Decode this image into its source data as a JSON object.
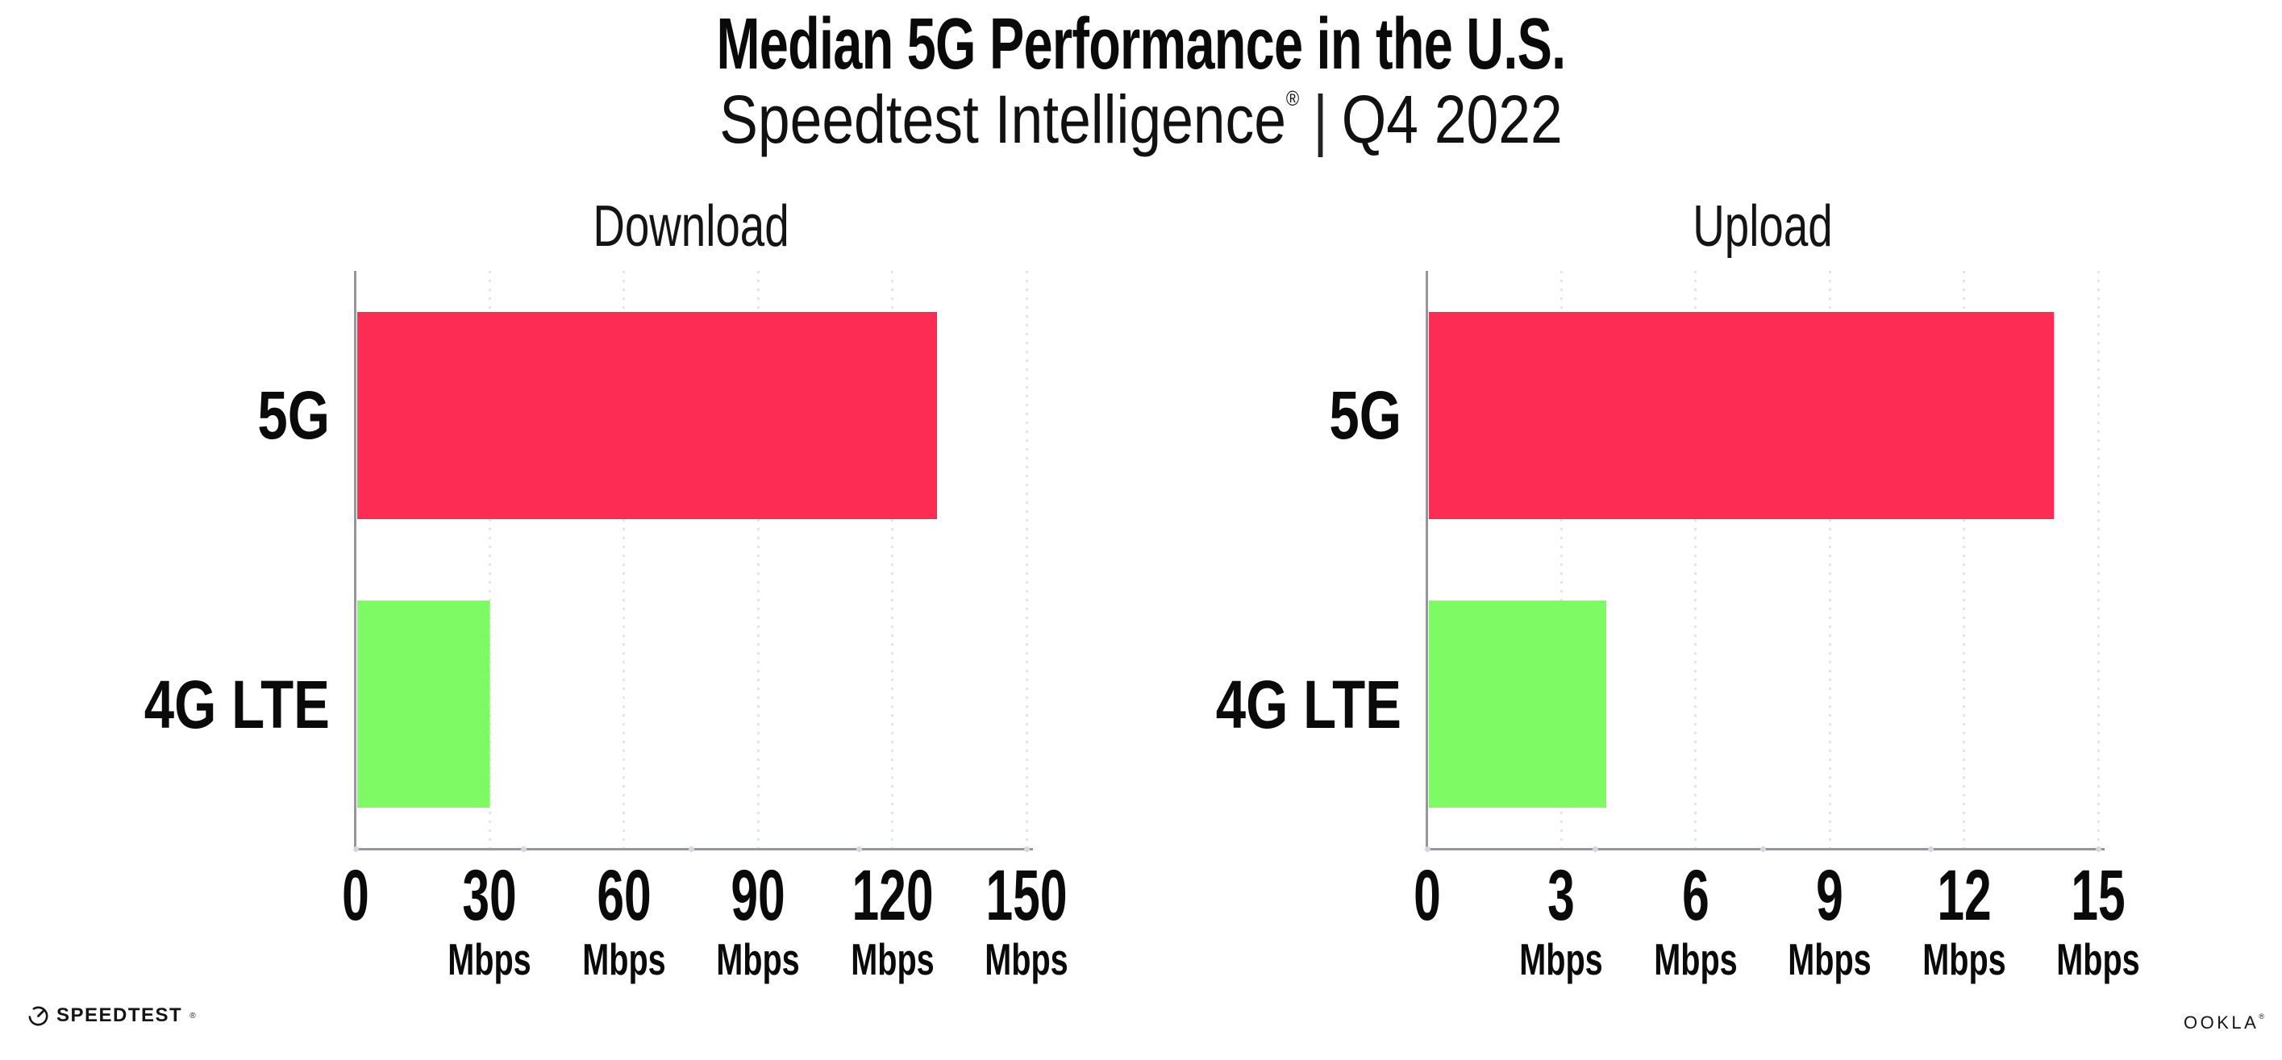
{
  "header": {
    "title": "Median 5G Performance in the U.S.",
    "subtitle_product": "Speedtest Intelligence",
    "subtitle_reg": "®",
    "subtitle_separator": "|",
    "subtitle_period": "Q4 2022"
  },
  "chart_data": [
    {
      "type": "bar",
      "orientation": "horizontal",
      "title": "Download",
      "categories": [
        "5G",
        "4G LTE"
      ],
      "values": [
        130,
        30
      ],
      "unit": "Mbps",
      "xlim": [
        0,
        150
      ],
      "xticks": [
        0,
        30,
        60,
        90,
        120,
        150
      ],
      "tick_unit_label": "Mbps",
      "bar_colors": [
        "#FC2C55",
        "#7EFA64"
      ],
      "gridlines": "dotted-vertical",
      "legend": "none"
    },
    {
      "type": "bar",
      "orientation": "horizontal",
      "title": "Upload",
      "categories": [
        "5G",
        "4G LTE"
      ],
      "values": [
        14,
        4
      ],
      "unit": "Mbps",
      "xlim": [
        0,
        15
      ],
      "xticks": [
        0,
        3,
        6,
        9,
        12,
        15
      ],
      "tick_unit_label": "Mbps",
      "bar_colors": [
        "#FC2C55",
        "#7EFA64"
      ],
      "gridlines": "dotted-vertical",
      "legend": "none"
    }
  ],
  "footer": {
    "speedtest_label": "SPEEDTEST",
    "speedtest_mark": "®",
    "ookla_label": "OOKLA",
    "ookla_mark": "®"
  },
  "colors": {
    "background": "#FFFFFF",
    "bar_5g": "#FC2C55",
    "bar_4g_lte": "#7EFA64",
    "axis_line": "#96969E",
    "gridline_dots": "#E4E4EE",
    "axis_marker_dots": "#D6D6E2",
    "text": "#0A0A0A"
  }
}
